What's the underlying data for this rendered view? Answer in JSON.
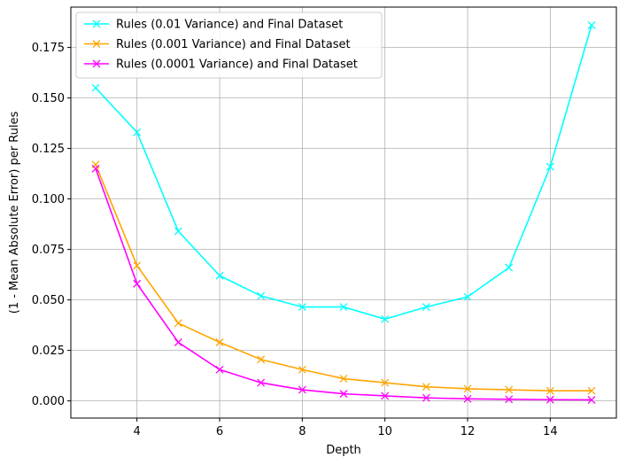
{
  "chart_data": {
    "type": "line",
    "title": "",
    "xlabel": "Depth",
    "ylabel": "(1 - Mean Absolute Error) per Rules",
    "xlim": [
      2.4,
      15.6
    ],
    "ylim": [
      -0.0085,
      0.195
    ],
    "xticks": [
      4,
      6,
      8,
      10,
      12,
      14
    ],
    "yticks": [
      0.0,
      0.025,
      0.05,
      0.075,
      0.1,
      0.125,
      0.15,
      0.175
    ],
    "ytick_labels": [
      "0.000",
      "0.025",
      "0.050",
      "0.075",
      "0.100",
      "0.125",
      "0.150",
      "0.175"
    ],
    "grid": true,
    "legend_position": "top-left",
    "x": [
      3,
      4,
      5,
      6,
      7,
      8,
      9,
      10,
      11,
      12,
      13,
      14,
      15
    ],
    "series": [
      {
        "name": "Rules (0.01 Variance) and Final Dataset",
        "color": "#00ffff",
        "marker": "x",
        "values": [
          0.155,
          0.133,
          0.084,
          0.062,
          0.052,
          0.0465,
          0.0465,
          0.0405,
          0.0465,
          0.0515,
          0.066,
          0.116,
          0.186
        ]
      },
      {
        "name": "Rules (0.001 Variance) and Final Dataset",
        "color": "#ffa500",
        "marker": "x",
        "values": [
          0.117,
          0.067,
          0.0385,
          0.029,
          0.0205,
          0.0155,
          0.011,
          0.009,
          0.007,
          0.006,
          0.0055,
          0.005,
          0.005
        ]
      },
      {
        "name": "Rules (0.0001 Variance) and Final Dataset",
        "color": "#ff00ff",
        "marker": "x",
        "values": [
          0.115,
          0.058,
          0.029,
          0.0155,
          0.009,
          0.0055,
          0.0035,
          0.0025,
          0.0015,
          0.001,
          0.0008,
          0.0006,
          0.0005
        ]
      }
    ]
  }
}
